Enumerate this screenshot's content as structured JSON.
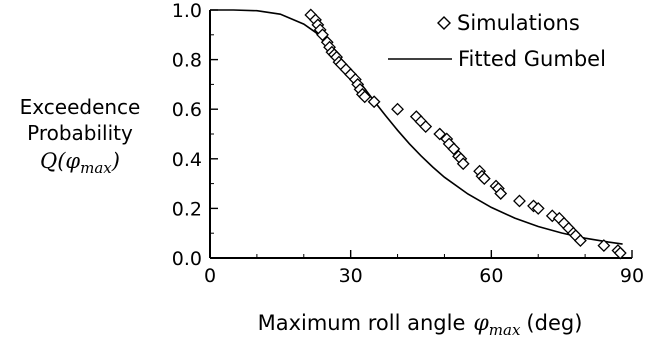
{
  "chart_data": {
    "type": "scatter",
    "xlabel": "Maximum roll angle",
    "xlabel_symbol": "φ",
    "xlabel_sub": "max",
    "xlabel_unit": "(deg)",
    "ylabel_line1": "Exceedence",
    "ylabel_line2": "Probability",
    "ylabel_symbol": "Q(φ",
    "ylabel_sub": "max",
    "ylabel_close": ")",
    "xlim": [
      0,
      90
    ],
    "ylim": [
      0,
      1
    ],
    "xticks": [
      "0",
      "30",
      "60",
      "90"
    ],
    "yticks": [
      "0.0",
      "0.2",
      "0.4",
      "0.6",
      "0.8",
      "1.0"
    ],
    "legend_position": "top-right",
    "grid": false,
    "series": [
      {
        "name": "Simulations",
        "kind": "marker-diamond",
        "x": [
          21.5,
          22.5,
          23.0,
          23.5,
          24.0,
          25.0,
          25.5,
          26.0,
          26.5,
          27.0,
          27.5,
          28.0,
          29.0,
          30.0,
          31.0,
          31.5,
          32.0,
          32.5,
          33.0,
          35.0,
          40.0,
          44.0,
          45.0,
          46.0,
          49.0,
          50.5,
          51.0,
          52.0,
          53.0,
          53.5,
          54.0,
          57.5,
          58.0,
          58.5,
          61.0,
          61.5,
          62.0,
          66.0,
          69.0,
          70.0,
          73.0,
          74.5,
          75.5,
          76.5,
          77.5,
          78.0,
          79.0,
          84.0,
          87.0,
          87.5
        ],
        "y": [
          0.98,
          0.96,
          0.94,
          0.92,
          0.9,
          0.87,
          0.85,
          0.83,
          0.82,
          0.81,
          0.79,
          0.78,
          0.76,
          0.74,
          0.72,
          0.7,
          0.68,
          0.66,
          0.65,
          0.63,
          0.6,
          0.57,
          0.55,
          0.53,
          0.5,
          0.48,
          0.46,
          0.44,
          0.41,
          0.4,
          0.38,
          0.35,
          0.33,
          0.32,
          0.29,
          0.28,
          0.26,
          0.23,
          0.21,
          0.2,
          0.17,
          0.16,
          0.14,
          0.12,
          0.1,
          0.09,
          0.07,
          0.05,
          0.03,
          0.02
        ]
      },
      {
        "name": "Fitted Gumbel",
        "kind": "line",
        "x": [
          0,
          5,
          10,
          15,
          20,
          22.5,
          25,
          27.5,
          30,
          32.5,
          35,
          37.5,
          40,
          42.5,
          45,
          47.5,
          50,
          55,
          60,
          65,
          70,
          75,
          80,
          85,
          88
        ],
        "y": [
          1.0,
          1.0,
          0.997,
          0.983,
          0.943,
          0.91,
          0.866,
          0.814,
          0.756,
          0.695,
          0.633,
          0.573,
          0.515,
          0.461,
          0.412,
          0.367,
          0.326,
          0.258,
          0.204,
          0.161,
          0.127,
          0.101,
          0.08,
          0.064,
          0.056
        ]
      }
    ]
  }
}
